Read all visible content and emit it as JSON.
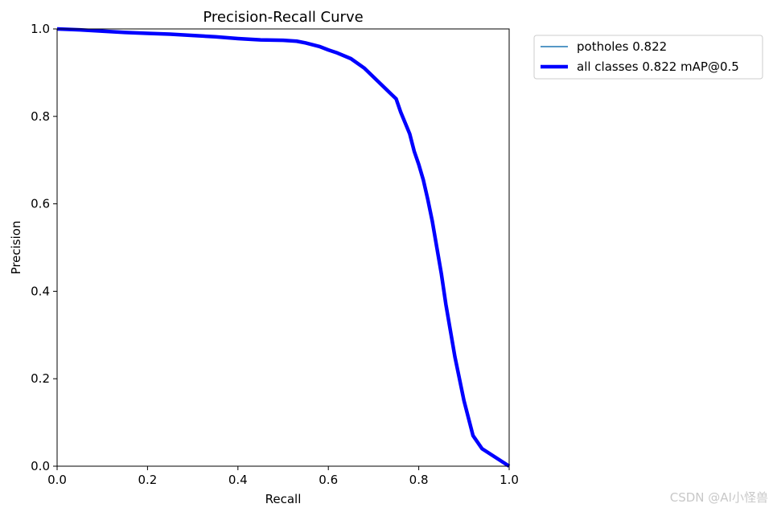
{
  "chart_data": {
    "type": "line",
    "title": "Precision-Recall Curve",
    "xlabel": "Recall",
    "ylabel": "Precision",
    "xlim": [
      0,
      1
    ],
    "ylim": [
      0,
      1
    ],
    "x_ticks": [
      "0.0",
      "0.2",
      "0.4",
      "0.6",
      "0.8",
      "1.0"
    ],
    "y_ticks": [
      "0.0",
      "0.2",
      "0.4",
      "0.6",
      "0.8",
      "1.0"
    ],
    "grid": false,
    "legend_position": "outside-top-right",
    "series": [
      {
        "name": "potholes 0.822",
        "color": "#1f77b4",
        "line": "thin",
        "x": [
          0.0,
          0.05,
          0.1,
          0.15,
          0.2,
          0.25,
          0.3,
          0.35,
          0.4,
          0.45,
          0.5,
          0.53,
          0.55,
          0.58,
          0.6,
          0.62,
          0.65,
          0.68,
          0.7,
          0.72,
          0.74,
          0.75,
          0.76,
          0.78,
          0.79,
          0.8,
          0.81,
          0.82,
          0.83,
          0.84,
          0.85,
          0.86,
          0.87,
          0.88,
          0.89,
          0.9,
          0.91,
          0.92,
          0.94,
          1.0
        ],
        "y": [
          1.0,
          0.998,
          0.995,
          0.992,
          0.99,
          0.988,
          0.985,
          0.982,
          0.978,
          0.975,
          0.974,
          0.972,
          0.968,
          0.96,
          0.952,
          0.945,
          0.932,
          0.91,
          0.89,
          0.87,
          0.85,
          0.84,
          0.81,
          0.76,
          0.72,
          0.69,
          0.655,
          0.61,
          0.56,
          0.5,
          0.44,
          0.37,
          0.31,
          0.25,
          0.2,
          0.15,
          0.11,
          0.07,
          0.04,
          0.0
        ]
      },
      {
        "name": "all classes 0.822 mAP@0.5",
        "color": "#0000ff",
        "line": "thick",
        "x": [
          0.0,
          0.05,
          0.1,
          0.15,
          0.2,
          0.25,
          0.3,
          0.35,
          0.4,
          0.45,
          0.5,
          0.53,
          0.55,
          0.58,
          0.6,
          0.62,
          0.65,
          0.68,
          0.7,
          0.72,
          0.74,
          0.75,
          0.76,
          0.78,
          0.79,
          0.8,
          0.81,
          0.82,
          0.83,
          0.84,
          0.85,
          0.86,
          0.87,
          0.88,
          0.89,
          0.9,
          0.91,
          0.92,
          0.94,
          1.0
        ],
        "y": [
          1.0,
          0.998,
          0.995,
          0.992,
          0.99,
          0.988,
          0.985,
          0.982,
          0.978,
          0.975,
          0.974,
          0.972,
          0.968,
          0.96,
          0.952,
          0.945,
          0.932,
          0.91,
          0.89,
          0.87,
          0.85,
          0.84,
          0.81,
          0.76,
          0.72,
          0.69,
          0.655,
          0.61,
          0.56,
          0.5,
          0.44,
          0.37,
          0.31,
          0.25,
          0.2,
          0.15,
          0.11,
          0.07,
          0.04,
          0.0
        ]
      }
    ]
  },
  "watermark": "CSDN @AI小怪兽"
}
